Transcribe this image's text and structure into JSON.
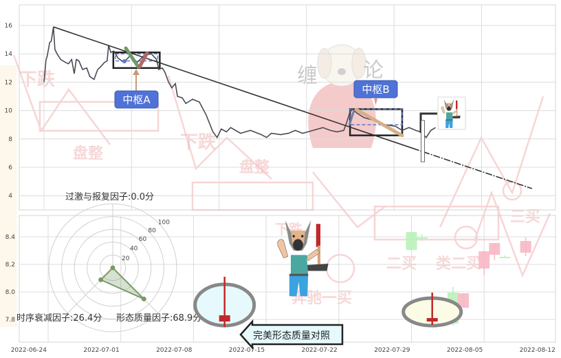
{
  "chart_data": [
    {
      "type": "line",
      "panel": "top",
      "ylim": [
        3,
        17.4
      ],
      "yticks": [
        "16",
        "14",
        "12",
        "10",
        "8",
        "6",
        "4"
      ],
      "grid": true,
      "line_color": "#4a4a55",
      "series": [
        {
          "points": [
            [
              "2022-06-24T00:00",
              12.0
            ],
            [
              "2022-06-24T04:00",
              13.6
            ],
            [
              "2022-06-24T06:00",
              13.8
            ],
            [
              "2022-06-24T11:00",
              14.8
            ],
            [
              "2022-06-24T14:00",
              14.9
            ],
            [
              "2022-06-24T18:00",
              15.9
            ],
            [
              "2022-06-24T21:00",
              14.3
            ],
            [
              "2022-06-25T01:00",
              14.0
            ],
            [
              "2022-06-25T08:00",
              13.6
            ],
            [
              "2022-06-25T17:00",
              13.4
            ],
            [
              "2022-06-25T23:00",
              13.3
            ],
            [
              "2022-06-26T05:00",
              13.6
            ],
            [
              "2022-06-26T10:00",
              12.6
            ],
            [
              "2022-06-26T14:00",
              13.6
            ],
            [
              "2022-06-26T19:00",
              13.5
            ],
            [
              "2022-06-27T02:00",
              12.9
            ],
            [
              "2022-06-27T10:00",
              13.0
            ],
            [
              "2022-06-27T16:00",
              12.4
            ],
            [
              "2022-06-28T00:00",
              12.2
            ],
            [
              "2022-06-28T07:00",
              12.9
            ],
            [
              "2022-06-28T13:00",
              13.1
            ],
            [
              "2022-06-28T20:00",
              13.4
            ],
            [
              "2022-06-29T01:00",
              13.5
            ],
            [
              "2022-06-29T04:00",
              14.6
            ],
            [
              "2022-06-29T08:00",
              14.1
            ],
            [
              "2022-06-29T14:00",
              14.2
            ],
            [
              "2022-06-29T22:00",
              13.7
            ],
            [
              "2022-06-30T09:00",
              13.4
            ],
            [
              "2022-06-30T22:00",
              13.9
            ],
            [
              "2022-07-01T11:00",
              13.4
            ],
            [
              "2022-07-02T00:00",
              13.9
            ],
            [
              "2022-07-02T14:00",
              14.0
            ],
            [
              "2022-07-03T00:00",
              13.6
            ],
            [
              "2022-07-03T04:00",
              12.9
            ],
            [
              "2022-07-03T11:00",
              13.0
            ],
            [
              "2022-07-03T16:00",
              12.7
            ],
            [
              "2022-07-03T23:00",
              12.0
            ],
            [
              "2022-07-04T05:00",
              11.6
            ],
            [
              "2022-07-04T12:00",
              11.9
            ],
            [
              "2022-07-04T16:00",
              11.0
            ],
            [
              "2022-07-05T01:00",
              10.9
            ],
            [
              "2022-07-05T08:00",
              10.5
            ],
            [
              "2022-07-05T21:00",
              10.8
            ],
            [
              "2022-07-06T10:00",
              10.6
            ],
            [
              "2022-07-06T23:00",
              9.7
            ],
            [
              "2022-07-07T12:00",
              8.5
            ],
            [
              "2022-07-07T20:00",
              8.1
            ],
            [
              "2022-07-08T04:00",
              8.7
            ],
            [
              "2022-07-08T14:00",
              8.5
            ],
            [
              "2022-07-08T22:00",
              8.8
            ],
            [
              "2022-07-09T17:00",
              8.4
            ],
            [
              "2022-07-10T12:00",
              8.6
            ],
            [
              "2022-07-11T09:00",
              8.3
            ],
            [
              "2022-07-11T19:00",
              8.1
            ],
            [
              "2022-07-12T04:00",
              8.4
            ],
            [
              "2022-07-12T22:00",
              8.3
            ],
            [
              "2022-07-13T13:00",
              8.4
            ],
            [
              "2022-07-14T02:00",
              8.6
            ],
            [
              "2022-07-14T16:00",
              8.4
            ],
            [
              "2022-07-15T12:00",
              8.6
            ],
            [
              "2022-07-16T07:00",
              8.8
            ],
            [
              "2022-07-16T21:00",
              8.6
            ],
            [
              "2022-07-17T10:00",
              8.5
            ],
            [
              "2022-07-17T23:00",
              8.6
            ],
            [
              "2022-07-18T03:00",
              9.0
            ],
            [
              "2022-07-18T10:00",
              9.8
            ],
            [
              "2022-07-18T15:00",
              10.1
            ],
            [
              "2022-07-19T01:00",
              9.8
            ],
            [
              "2022-07-19T14:00",
              9.5
            ],
            [
              "2022-07-20T10:00",
              9.3
            ],
            [
              "2022-07-21T06:00",
              9.0
            ],
            [
              "2022-07-22T02:00",
              8.9
            ],
            [
              "2022-07-22T15:00",
              8.6
            ],
            [
              "2022-07-23T04:00",
              8.8
            ],
            [
              "2022-07-23T17:00",
              8.6
            ],
            [
              "2022-07-24T02:00",
              8.5
            ],
            [
              "2022-07-24T13:00",
              8.1
            ],
            [
              "2022-07-24T22:00",
              8.6
            ],
            [
              "2022-07-25T07:00",
              8.8
            ]
          ]
        }
      ],
      "trend_line": {
        "from": [
          "2022-06-24T18:00",
          15.9
        ],
        "to": [
          "2022-08-02T00:00",
          4.5
        ],
        "dashed_from": "2022-07-23T11:00",
        "color": "#333333"
      },
      "pivots": [
        {
          "label": "中枢A",
          "start": "2022-06-29T13:00",
          "end": "2022-07-03T06:00",
          "low": 13.0,
          "high": 14.1,
          "inner_low": 13.5,
          "inner_high": 14.0
        },
        {
          "label": "中枢B",
          "start": "2022-07-18T11:00",
          "end": "2022-07-22T15:00",
          "low": 8.25,
          "high": 10.1,
          "inner_mid": 9.0
        }
      ],
      "label_color": "#4f72d6"
    },
    {
      "type": "candlestick",
      "panel": "bottom",
      "ylim": [
        7.64,
        8.56
      ],
      "yticks": [
        "8.4",
        "8.2",
        "8.0",
        "7.8"
      ],
      "xticks": [
        "2022-06-24",
        "2022-07-01",
        "2022-07-08",
        "2022-07-15",
        "2022-07-22",
        "2022-07-29",
        "2022-08-05",
        "2022-08-12"
      ],
      "grid": true,
      "highlighted_candles": [
        {
          "date": "2022-07-11",
          "open": 7.785,
          "high": 8.11,
          "low": 7.745,
          "close": 7.83,
          "color": "#c0282a",
          "ellipse_fill": "#e6fafd"
        },
        {
          "date": "2022-07-31",
          "open": 7.785,
          "high": 7.995,
          "low": 7.76,
          "close": 7.81,
          "color": "#c0282a",
          "ellipse_fill": "#fbfbe6"
        }
      ],
      "faint_candles": [
        {
          "date": "2022-07-29",
          "open": 8.435,
          "high": 8.44,
          "low": 8.3,
          "close": 8.305
        },
        {
          "date": "2022-07-30",
          "open": 8.395,
          "high": 8.42,
          "low": 8.37,
          "close": 8.39
        },
        {
          "date": "2022-08-02",
          "open": 7.995,
          "high": 8.035,
          "low": 7.755,
          "close": 7.77
        },
        {
          "date": "2022-08-03",
          "open": 7.885,
          "high": 7.99,
          "low": 7.885,
          "close": 7.99
        },
        {
          "date": "2022-08-05",
          "open": 8.17,
          "high": 8.295,
          "low": 8.12,
          "close": 8.295
        },
        {
          "date": "2022-08-06",
          "open": 8.27,
          "high": 8.355,
          "low": 8.23,
          "close": 8.355
        },
        {
          "date": "2022-08-07",
          "open": 8.255,
          "high": 8.265,
          "low": 8.245,
          "close": 8.25
        },
        {
          "date": "2022-08-09",
          "open": 8.285,
          "high": 8.395,
          "low": 8.26,
          "close": 8.37
        }
      ],
      "up_color": "#f7b8c4",
      "down_color": "#b9f2b9"
    },
    {
      "type": "radar",
      "rings": [
        "20",
        "40",
        "60",
        "80",
        "100"
      ],
      "max": 100,
      "axes": [
        {
          "label": "过激与报复因子:0.0分",
          "value": 0.0
        },
        {
          "label": "时序衰减因子:26.4分",
          "value": 26.4
        },
        {
          "label": "形态质量因子:68.9分",
          "value": 68.9
        }
      ],
      "color": "#7a9a68"
    }
  ],
  "compare_label": "完美形态质量对照",
  "watermark": {
    "texts": [
      "下跌",
      "下跌",
      "下跌",
      "盘整",
      "盘整",
      "二买",
      "类二买",
      "奔驰一买",
      "三买"
    ],
    "brand": [
      "缠",
      "论"
    ]
  },
  "icons": [
    "shepherd-dog-with-hammer-icon",
    "monk-dog-watermark-icon"
  ]
}
